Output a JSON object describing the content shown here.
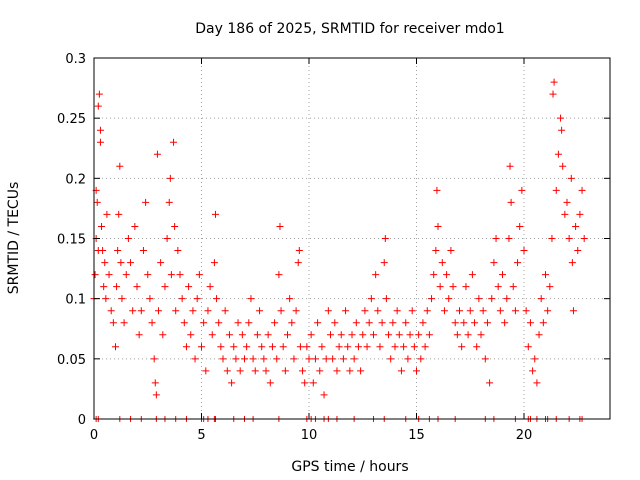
{
  "chart_data": {
    "type": "scatter",
    "title": "Day 186 of 2025, SRMTID for receiver mdo1",
    "xlabel": "GPS time / hours",
    "ylabel": "SRMTID / TECUs",
    "xlim": [
      0,
      24
    ],
    "ylim": [
      0,
      0.3
    ],
    "x_ticks": [
      0,
      5,
      10,
      15,
      20
    ],
    "x_tick_labels": [
      "0",
      "5",
      "10",
      "15",
      "20"
    ],
    "y_ticks": [
      0,
      0.05,
      0.1,
      0.15,
      0.2,
      0.25,
      0.3
    ],
    "y_tick_labels": [
      "0",
      "0.05",
      "0.1",
      "0.15",
      "0.2",
      "0.25",
      "0.3"
    ],
    "grid": true,
    "marker": "+",
    "color": "#ff0000",
    "series": [
      {
        "name": "SRMTID",
        "points": [
          [
            0.0,
            0.1
          ],
          [
            0.05,
            0.12
          ],
          [
            0.1,
            0.15
          ],
          [
            0.1,
            0.19
          ],
          [
            0.15,
            0.18
          ],
          [
            0.2,
            0.14
          ],
          [
            0.2,
            0.26
          ],
          [
            0.25,
            0.27
          ],
          [
            0.3,
            0.23
          ],
          [
            0.3,
            0.24
          ],
          [
            0.35,
            0.16
          ],
          [
            0.4,
            0.14
          ],
          [
            0.45,
            0.11
          ],
          [
            0.5,
            0.13
          ],
          [
            0.55,
            0.1
          ],
          [
            0.6,
            0.17
          ],
          [
            0.7,
            0.12
          ],
          [
            0.8,
            0.09
          ],
          [
            0.9,
            0.08
          ],
          [
            1.0,
            0.06
          ],
          [
            1.05,
            0.11
          ],
          [
            1.1,
            0.14
          ],
          [
            1.15,
            0.17
          ],
          [
            1.2,
            0.21
          ],
          [
            1.25,
            0.13
          ],
          [
            1.3,
            0.1
          ],
          [
            1.4,
            0.08
          ],
          [
            1.5,
            0.12
          ],
          [
            1.6,
            0.15
          ],
          [
            1.7,
            0.13
          ],
          [
            1.8,
            0.09
          ],
          [
            1.9,
            0.16
          ],
          [
            2.0,
            0.11
          ],
          [
            2.1,
            0.07
          ],
          [
            2.2,
            0.09
          ],
          [
            2.3,
            0.14
          ],
          [
            2.4,
            0.18
          ],
          [
            2.5,
            0.12
          ],
          [
            2.6,
            0.1
          ],
          [
            2.7,
            0.08
          ],
          [
            2.8,
            0.05
          ],
          [
            2.85,
            0.03
          ],
          [
            2.9,
            0.02
          ],
          [
            2.95,
            0.22
          ],
          [
            3.0,
            0.09
          ],
          [
            3.1,
            0.13
          ],
          [
            3.2,
            0.07
          ],
          [
            3.3,
            0.11
          ],
          [
            3.4,
            0.15
          ],
          [
            3.5,
            0.18
          ],
          [
            3.55,
            0.2
          ],
          [
            3.6,
            0.12
          ],
          [
            3.7,
            0.23
          ],
          [
            3.75,
            0.16
          ],
          [
            3.8,
            0.09
          ],
          [
            3.9,
            0.14
          ],
          [
            4.0,
            0.12
          ],
          [
            4.1,
            0.1
          ],
          [
            4.2,
            0.08
          ],
          [
            4.3,
            0.06
          ],
          [
            4.4,
            0.11
          ],
          [
            4.5,
            0.07
          ],
          [
            4.6,
            0.09
          ],
          [
            4.7,
            0.05
          ],
          [
            4.8,
            0.1
          ],
          [
            4.9,
            0.12
          ],
          [
            5.0,
            0.06
          ],
          [
            5.1,
            0.08
          ],
          [
            5.2,
            0.04
          ],
          [
            5.3,
            0.09
          ],
          [
            5.4,
            0.11
          ],
          [
            5.5,
            0.07
          ],
          [
            5.6,
            0.13
          ],
          [
            5.65,
            0.17
          ],
          [
            5.7,
            0.1
          ],
          [
            5.8,
            0.08
          ],
          [
            5.9,
            0.06
          ],
          [
            6.0,
            0.05
          ],
          [
            6.1,
            0.09
          ],
          [
            6.2,
            0.04
          ],
          [
            6.3,
            0.07
          ],
          [
            6.4,
            0.03
          ],
          [
            6.5,
            0.06
          ],
          [
            6.6,
            0.05
          ],
          [
            6.7,
            0.08
          ],
          [
            6.8,
            0.04
          ],
          [
            6.9,
            0.07
          ],
          [
            7.0,
            0.05
          ],
          [
            7.1,
            0.06
          ],
          [
            7.2,
            0.08
          ],
          [
            7.3,
            0.1
          ],
          [
            7.4,
            0.05
          ],
          [
            7.5,
            0.04
          ],
          [
            7.6,
            0.07
          ],
          [
            7.7,
            0.09
          ],
          [
            7.8,
            0.06
          ],
          [
            7.9,
            0.05
          ],
          [
            8.0,
            0.04
          ],
          [
            8.1,
            0.07
          ],
          [
            8.2,
            0.03
          ],
          [
            8.3,
            0.06
          ],
          [
            8.4,
            0.08
          ],
          [
            8.5,
            0.05
          ],
          [
            8.6,
            0.12
          ],
          [
            8.65,
            0.16
          ],
          [
            8.7,
            0.09
          ],
          [
            8.8,
            0.06
          ],
          [
            8.9,
            0.04
          ],
          [
            9.0,
            0.07
          ],
          [
            9.1,
            0.1
          ],
          [
            9.2,
            0.08
          ],
          [
            9.3,
            0.05
          ],
          [
            9.4,
            0.09
          ],
          [
            9.5,
            0.13
          ],
          [
            9.55,
            0.14
          ],
          [
            9.6,
            0.06
          ],
          [
            9.7,
            0.04
          ],
          [
            9.8,
            0.03
          ],
          [
            9.9,
            0.06
          ],
          [
            10.0,
            0.05
          ],
          [
            10.1,
            0.07
          ],
          [
            10.2,
            0.03
          ],
          [
            10.3,
            0.05
          ],
          [
            10.4,
            0.08
          ],
          [
            10.5,
            0.04
          ],
          [
            10.6,
            0.06
          ],
          [
            10.7,
            0.02
          ],
          [
            10.8,
            0.05
          ],
          [
            10.9,
            0.09
          ],
          [
            11.0,
            0.07
          ],
          [
            11.1,
            0.05
          ],
          [
            11.2,
            0.08
          ],
          [
            11.3,
            0.04
          ],
          [
            11.4,
            0.06
          ],
          [
            11.5,
            0.07
          ],
          [
            11.6,
            0.05
          ],
          [
            11.7,
            0.09
          ],
          [
            11.8,
            0.06
          ],
          [
            11.9,
            0.04
          ],
          [
            12.0,
            0.07
          ],
          [
            12.1,
            0.05
          ],
          [
            12.2,
            0.08
          ],
          [
            12.3,
            0.06
          ],
          [
            12.4,
            0.04
          ],
          [
            12.5,
            0.07
          ],
          [
            12.6,
            0.09
          ],
          [
            12.7,
            0.06
          ],
          [
            12.8,
            0.08
          ],
          [
            12.9,
            0.1
          ],
          [
            13.0,
            0.07
          ],
          [
            13.1,
            0.12
          ],
          [
            13.2,
            0.09
          ],
          [
            13.3,
            0.06
          ],
          [
            13.4,
            0.08
          ],
          [
            13.5,
            0.13
          ],
          [
            13.55,
            0.15
          ],
          [
            13.6,
            0.1
          ],
          [
            13.7,
            0.07
          ],
          [
            13.8,
            0.05
          ],
          [
            13.9,
            0.08
          ],
          [
            14.0,
            0.06
          ],
          [
            14.1,
            0.09
          ],
          [
            14.2,
            0.07
          ],
          [
            14.3,
            0.04
          ],
          [
            14.4,
            0.06
          ],
          [
            14.5,
            0.08
          ],
          [
            14.6,
            0.05
          ],
          [
            14.7,
            0.07
          ],
          [
            14.8,
            0.09
          ],
          [
            14.9,
            0.06
          ],
          [
            15.0,
            0.04
          ],
          [
            15.1,
            0.07
          ],
          [
            15.2,
            0.05
          ],
          [
            15.3,
            0.08
          ],
          [
            15.4,
            0.06
          ],
          [
            15.5,
            0.09
          ],
          [
            15.6,
            0.07
          ],
          [
            15.7,
            0.1
          ],
          [
            15.8,
            0.12
          ],
          [
            15.9,
            0.14
          ],
          [
            15.95,
            0.19
          ],
          [
            16.0,
            0.16
          ],
          [
            16.1,
            0.11
          ],
          [
            16.2,
            0.13
          ],
          [
            16.3,
            0.09
          ],
          [
            16.4,
            0.12
          ],
          [
            16.5,
            0.1
          ],
          [
            16.6,
            0.14
          ],
          [
            16.7,
            0.11
          ],
          [
            16.8,
            0.08
          ],
          [
            16.9,
            0.07
          ],
          [
            17.0,
            0.09
          ],
          [
            17.1,
            0.06
          ],
          [
            17.2,
            0.08
          ],
          [
            17.3,
            0.11
          ],
          [
            17.4,
            0.07
          ],
          [
            17.5,
            0.09
          ],
          [
            17.6,
            0.12
          ],
          [
            17.7,
            0.08
          ],
          [
            17.8,
            0.06
          ],
          [
            17.9,
            0.1
          ],
          [
            18.0,
            0.07
          ],
          [
            18.1,
            0.09
          ],
          [
            18.2,
            0.05
          ],
          [
            18.3,
            0.08
          ],
          [
            18.4,
            0.03
          ],
          [
            18.5,
            0.1
          ],
          [
            18.6,
            0.13
          ],
          [
            18.7,
            0.15
          ],
          [
            18.8,
            0.11
          ],
          [
            18.9,
            0.09
          ],
          [
            19.0,
            0.12
          ],
          [
            19.1,
            0.08
          ],
          [
            19.2,
            0.1
          ],
          [
            19.3,
            0.15
          ],
          [
            19.35,
            0.21
          ],
          [
            19.4,
            0.18
          ],
          [
            19.5,
            0.11
          ],
          [
            19.6,
            0.09
          ],
          [
            19.7,
            0.13
          ],
          [
            19.8,
            0.16
          ],
          [
            19.9,
            0.19
          ],
          [
            20.0,
            0.14
          ],
          [
            20.1,
            0.09
          ],
          [
            20.2,
            0.06
          ],
          [
            20.3,
            0.08
          ],
          [
            20.4,
            0.04
          ],
          [
            20.5,
            0.05
          ],
          [
            20.6,
            0.03
          ],
          [
            20.7,
            0.07
          ],
          [
            20.8,
            0.1
          ],
          [
            20.9,
            0.08
          ],
          [
            21.0,
            0.12
          ],
          [
            21.1,
            0.09
          ],
          [
            21.2,
            0.11
          ],
          [
            21.3,
            0.15
          ],
          [
            21.35,
            0.27
          ],
          [
            21.4,
            0.28
          ],
          [
            21.5,
            0.19
          ],
          [
            21.6,
            0.22
          ],
          [
            21.7,
            0.25
          ],
          [
            21.75,
            0.24
          ],
          [
            21.8,
            0.21
          ],
          [
            21.9,
            0.17
          ],
          [
            22.0,
            0.18
          ],
          [
            22.1,
            0.15
          ],
          [
            22.2,
            0.2
          ],
          [
            22.25,
            0.13
          ],
          [
            22.3,
            0.09
          ],
          [
            22.4,
            0.16
          ],
          [
            22.5,
            0.14
          ],
          [
            22.6,
            0.17
          ],
          [
            22.7,
            0.19
          ],
          [
            22.8,
            0.15
          ]
        ]
      }
    ],
    "zero_markers_x": [
      0.1,
      0.2,
      1.2,
      1.7,
      2.2,
      2.9,
      3.3,
      3.8,
      4.3,
      5.0,
      5.1,
      5.3,
      5.6,
      5.65,
      6.5,
      7.0,
      7.4,
      8.6,
      9.9,
      10.1,
      10.3,
      10.7,
      10.9,
      11.3,
      12.1,
      13.0,
      13.5,
      14.5,
      15.1,
      15.6,
      16.0,
      16.8,
      18.2,
      18.6,
      19.6,
      20.2,
      20.3,
      20.6,
      21.0,
      21.1,
      21.5,
      22.1,
      22.6,
      22.7
    ]
  }
}
